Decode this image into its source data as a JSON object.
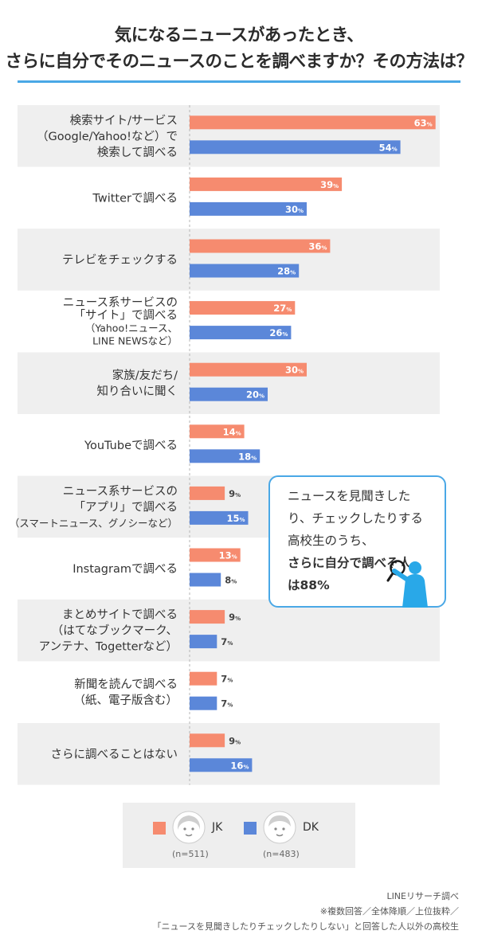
{
  "title": {
    "line1": "気になるニュースがあったとき、",
    "line2": "さらに自分でそのニュースのことを調べますか？その方法は？"
  },
  "colors": {
    "jk": "#f68b6f",
    "dk": "#5b87d9",
    "accent": "#4aa8e6",
    "row_shade": "#efefef"
  },
  "chart_data": {
    "type": "bar",
    "orientation": "horizontal",
    "unit": "%",
    "categories": [
      [
        "検索サイト/サービス",
        "（Google/Yahoo!など）で",
        "検索して調べる"
      ],
      [
        "Twitterで調べる"
      ],
      [
        "テレビをチェックする"
      ],
      [
        "ニュース系サービスの",
        "「サイト」で調べる",
        "（Yahoo!ニュース、",
        "LINE NEWSなど）"
      ],
      [
        "家族/友だち/",
        "知り合いに聞く"
      ],
      [
        "YouTubeで調べる"
      ],
      [
        "ニュース系サービスの",
        "「アプリ」で調べる",
        "（スマートニュース、グノシーなど）"
      ],
      [
        "Instagramで調べる"
      ],
      [
        "まとめサイトで調べる",
        "（はてなブックマーク、",
        "アンテナ、Togetterなど）"
      ],
      [
        "新聞を読んで調べる",
        "（紙、電子版含む）"
      ],
      [
        "さらに調べることはない"
      ]
    ],
    "series": [
      {
        "name": "JK",
        "values": [
          63,
          39,
          36,
          27,
          30,
          14,
          9,
          13,
          9,
          7,
          9
        ]
      },
      {
        "name": "DK",
        "values": [
          54,
          30,
          28,
          26,
          20,
          18,
          15,
          8,
          7,
          7,
          16
        ]
      }
    ],
    "xlim": [
      0,
      70
    ]
  },
  "callout": {
    "line1": "ニュースを見聞きした",
    "line2": "り、チェックしたりする",
    "line3": "高校生のうち、",
    "line4": "さらに自分で調べる人",
    "line5": "は88%"
  },
  "legend": {
    "jk_label": "JK",
    "jk_n": "(n=511)",
    "dk_label": "DK",
    "dk_n": "(n=483)"
  },
  "footer": {
    "line1": "LINEリサーチ調べ",
    "line2": "※複数回答／全体降順／上位抜粋／",
    "line3": "「ニュースを見聞きしたりチェックしたりしない」と回答した人以外の高校生"
  }
}
